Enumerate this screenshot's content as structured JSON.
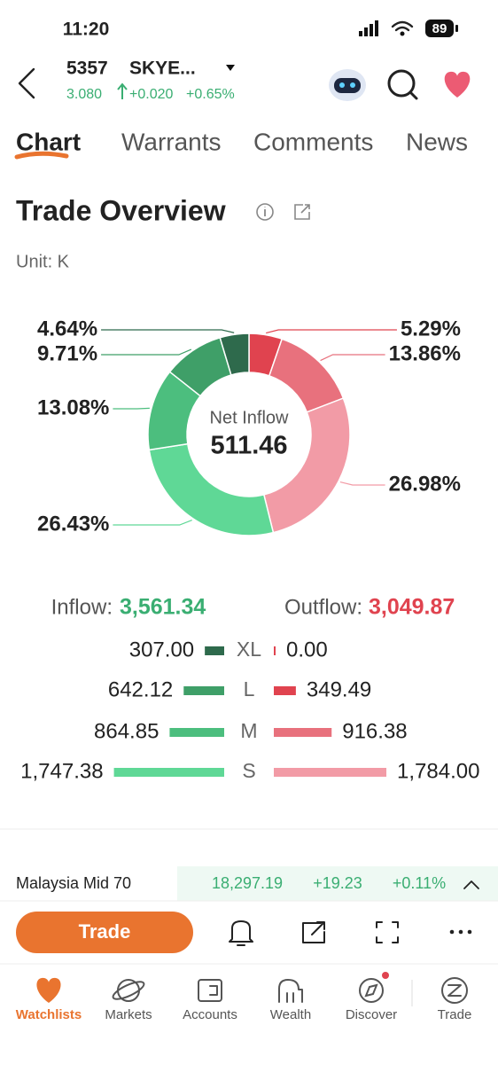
{
  "status_bar": {
    "time": "11:20",
    "battery": "89"
  },
  "header": {
    "ticker": "5357",
    "name": "SKYE...",
    "price": "3.080",
    "change": "+0.020",
    "change_pct": "+0.65%"
  },
  "tabs": [
    "Chart",
    "Warrants",
    "Comments",
    "News"
  ],
  "section": {
    "title": "Trade Overview",
    "unit": "Unit: K"
  },
  "chart_data": {
    "type": "pie",
    "center_label": "Net Inflow",
    "center_value": 511.46,
    "values": [
      5.29,
      13.86,
      26.98,
      26.43,
      13.08,
      9.71,
      4.64
    ],
    "value_labels": [
      "5.29%",
      "13.86%",
      "26.98%",
      "26.43%",
      "13.08%",
      "9.71%",
      "4.64%"
    ],
    "colors": [
      "#e0434f",
      "#e8717d",
      "#f29ba6",
      "#5fd896",
      "#4cbe7e",
      "#3f9f68",
      "#2e6a4c"
    ]
  },
  "flow": {
    "inflow_label": "Inflow:",
    "inflow_total": "3,561.34",
    "outflow_label": "Outflow:",
    "outflow_total": "3,049.87",
    "rows": [
      {
        "inflow": "307.00",
        "size": "XL",
        "outflow": "0.00"
      },
      {
        "inflow": "642.12",
        "size": "L",
        "outflow": "349.49"
      },
      {
        "inflow": "864.85",
        "size": "M",
        "outflow": "916.38"
      },
      {
        "inflow": "1,747.38",
        "size": "S",
        "outflow": "1,784.00"
      }
    ]
  },
  "index_bar": {
    "name": "Malaysia Mid 70",
    "value": "18,297.19",
    "change": "+19.23",
    "change_pct": "+0.11%"
  },
  "actions": {
    "trade_button": "Trade"
  },
  "nav": [
    "Watchlists",
    "Markets",
    "Accounts",
    "Wealth",
    "Discover",
    "Trade"
  ]
}
